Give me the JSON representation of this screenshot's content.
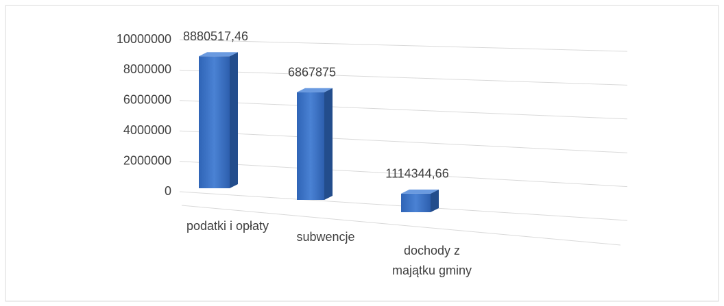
{
  "chart_data": {
    "type": "bar3d",
    "categories": [
      "podatki i opłaty",
      "subwencje",
      "dochody z majątku gminy"
    ],
    "values": [
      8880517.46,
      6867875,
      1114344.66
    ],
    "value_labels": [
      "8880517,46",
      "6867875",
      "1114344,66"
    ],
    "color": "#3a70c4",
    "ylim": [
      0,
      10000000
    ],
    "yticks": [
      0,
      2000000,
      4000000,
      6000000,
      8000000,
      10000000
    ],
    "grid": true
  }
}
